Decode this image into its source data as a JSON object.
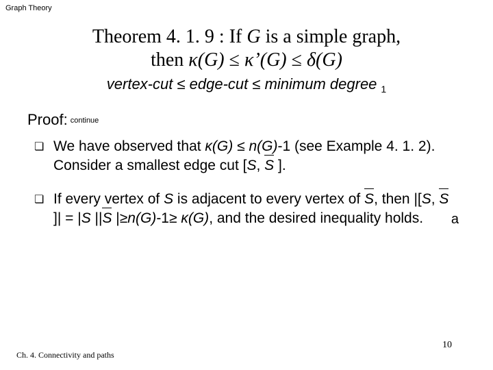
{
  "header": "Graph Theory",
  "title": {
    "line1_pre": "Theorem ",
    "line1_num": "4. 1. 9",
    "line1_post": " : If ",
    "line1_G": "G",
    "line1_end": " is a simple graph,",
    "line2_pre": "then ",
    "line2_k1": "κ",
    "line2_G1": "(G)",
    "line2_le1": " ≤ ",
    "line2_k2": "κ’",
    "line2_G2": "(G)",
    "line2_le2": " ≤ ",
    "line2_d": "δ",
    "line2_G3": "(G)"
  },
  "vertexline": {
    "t1": "vertex-cut ",
    "le1": "≤",
    "t2": " edge-cut ",
    "le2": "≤",
    "t3": " minimum degree",
    "sub": "1"
  },
  "proof": {
    "label": "Proof:",
    "cont": "continue"
  },
  "bullets": [
    {
      "pre": "We have observed that ",
      "kappa": "κ",
      "g1": "(G)",
      "le": " ≤ ",
      "n": "n",
      "g2": "(G)",
      "m1": "-1 (see Example 4. 1. 2). Consider a smallest edge cut [",
      "s1": "S",
      "comma": ", ",
      "s2bar": "S",
      "end": " ]."
    },
    {
      "pre": " If every vertex of ",
      "s1": "S",
      "t2": " is adjacent to every vertex of ",
      "s2bar": "S",
      "t3": ", then |[",
      "s3": "S",
      "t4": ", ",
      "s4bar": "S",
      "t5": " ]| = |",
      "s5": "S",
      "t6": " ||",
      "s6bar": "S",
      "t7": " |≥",
      "n": "n",
      "g": "(G)",
      "t8": "-1≥ ",
      "kappa": "κ",
      "g2": "(G)",
      "t9": ", and the desired inequality holds.",
      "ast": "a"
    }
  ],
  "footer": "Ch. 4.   Connectivity and paths",
  "pagenum": "10"
}
